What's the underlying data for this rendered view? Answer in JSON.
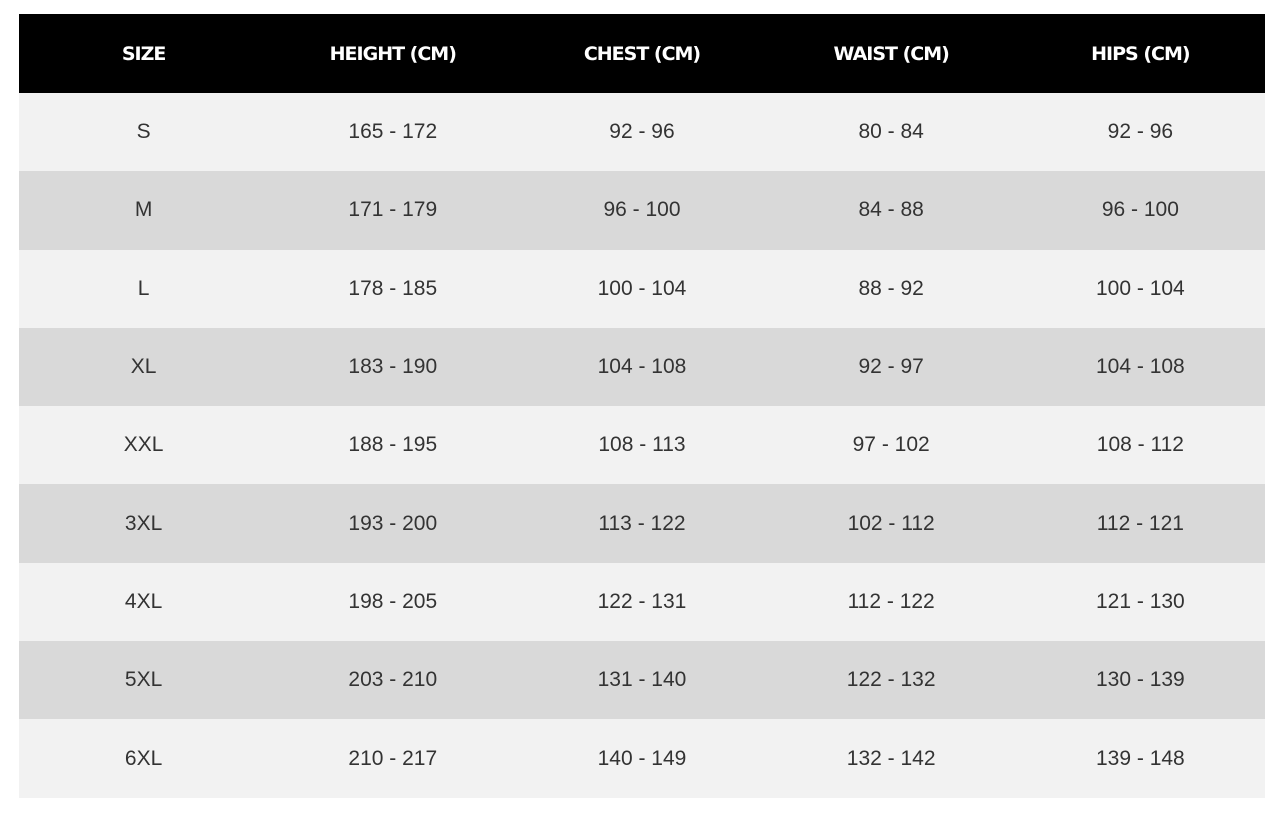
{
  "headers": [
    "SIZE",
    "HEIGHT (CM)",
    "CHEST (CM)",
    "WAIST (CM)",
    "HIPS (CM)"
  ],
  "rows": [
    [
      "S",
      "165 - 172",
      "92 - 96",
      "80 - 84",
      "92 - 96"
    ],
    [
      "M",
      "171 - 179",
      "96 - 100",
      "84 - 88",
      "96 - 100"
    ],
    [
      "L",
      "178 - 185",
      "100 - 104",
      "88 - 92",
      "100 - 104"
    ],
    [
      "XL",
      "183 - 190",
      "104 - 108",
      "92 - 97",
      "104 - 108"
    ],
    [
      "XXL",
      "188 - 195",
      "108 - 113",
      "97 - 102",
      "108 - 112"
    ],
    [
      "3XL",
      "193 - 200",
      "113 - 122",
      "102 - 112",
      "112 - 121"
    ],
    [
      "4XL",
      "198 - 205",
      "122 - 131",
      "112 - 122",
      "121 - 130"
    ],
    [
      "5XL",
      "203 - 210",
      "131 - 140",
      "122 - 132",
      "130 - 139"
    ],
    [
      "6XL",
      "210 - 217",
      "140 - 149",
      "132 - 142",
      "139 - 148"
    ]
  ],
  "colors": {
    "header_bg": "#000000",
    "header_text": "#ffffff",
    "row_light": "#f2f2f2",
    "row_dark": "#d9d9d9",
    "cell_text": "#333333"
  }
}
